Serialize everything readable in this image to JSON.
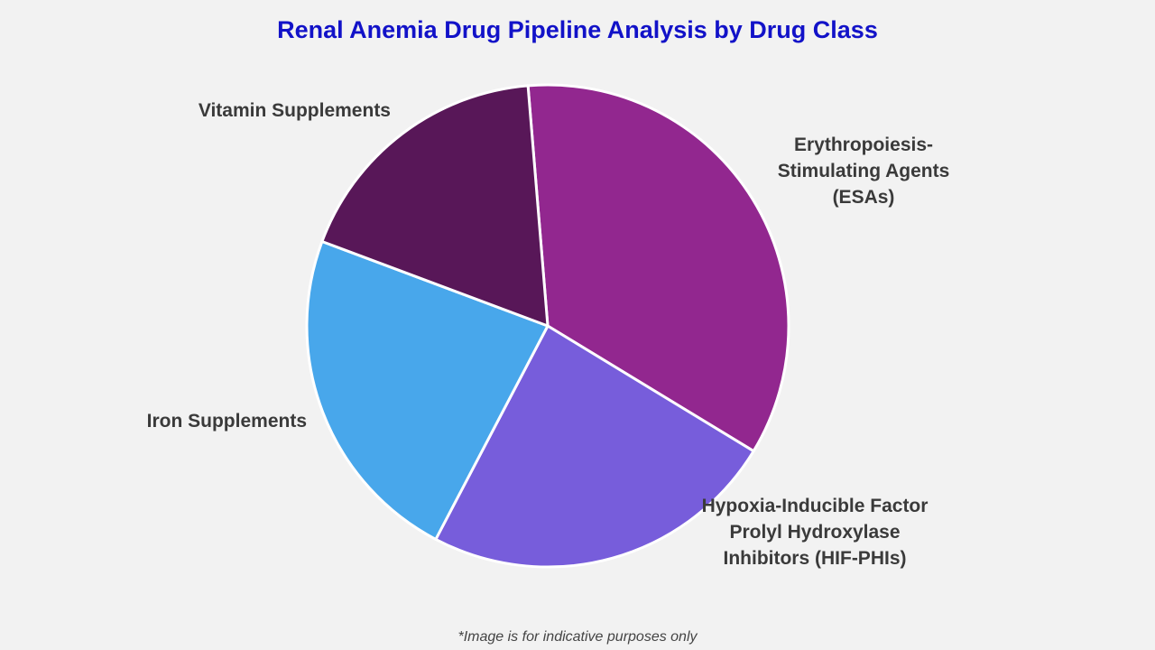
{
  "chart_data": {
    "type": "pie",
    "title": "Renal Anemia Drug Pipeline Analysis by Drug Class",
    "categories": [
      "Erythropoiesis-Stimulating Agents (ESAs)",
      "Hypoxia-Inducible Factor Prolyl Hydroxylase Inhibitors (HIF-PHIs)",
      "Iron Supplements",
      "Vitamin Supplements"
    ],
    "values": [
      35,
      24,
      23,
      18
    ],
    "colors": [
      "#92278f",
      "#775ddb",
      "#48a7eb",
      "#581758"
    ],
    "footnote": "*Image is for indicative purposes only"
  }
}
